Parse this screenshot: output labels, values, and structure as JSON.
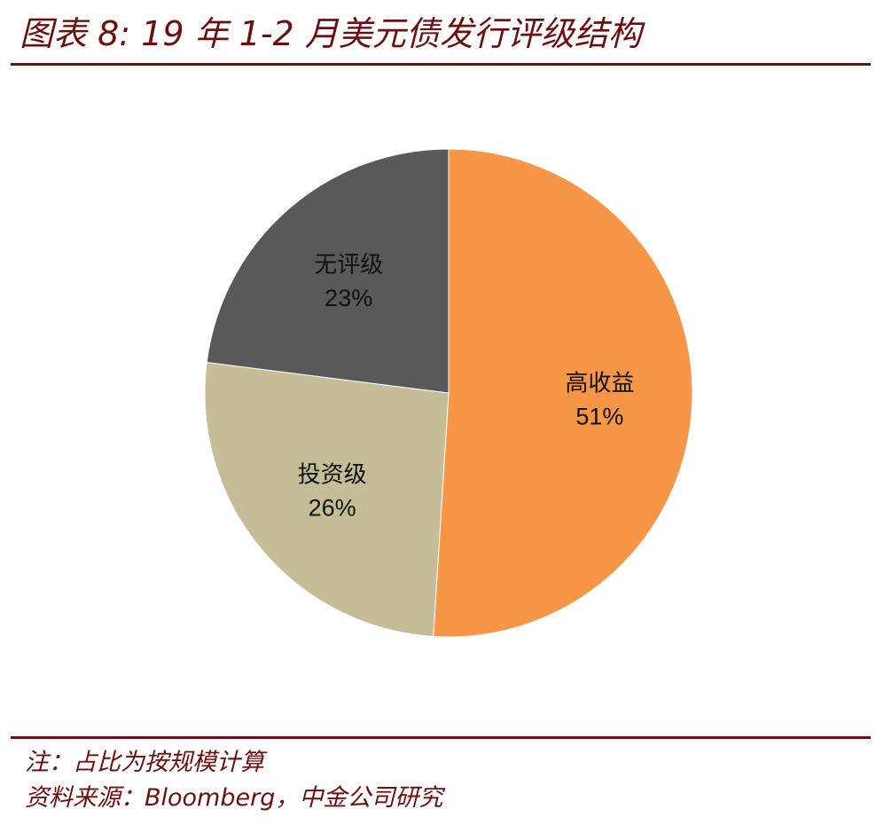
{
  "header": {
    "title": "图表 8: 19 年 1-2 月美元债发行评级结构"
  },
  "chart_data": {
    "type": "pie",
    "title": "图表 8: 19 年 1-2 月美元债发行评级结构",
    "start": "12 o'clock",
    "direction": "clockwise",
    "slices": [
      {
        "label": "高收益",
        "value": 51,
        "display": "51%",
        "color": "#F79646"
      },
      {
        "label": "投资级",
        "value": 26,
        "display": "26%",
        "color": "#C4BD97"
      },
      {
        "label": "无评级",
        "value": 23,
        "display": "23%",
        "color": "#595959"
      }
    ]
  },
  "footer": {
    "note": "注：占比为按规模计算",
    "source": "资料来源：Bloomberg，中金公司研究"
  }
}
